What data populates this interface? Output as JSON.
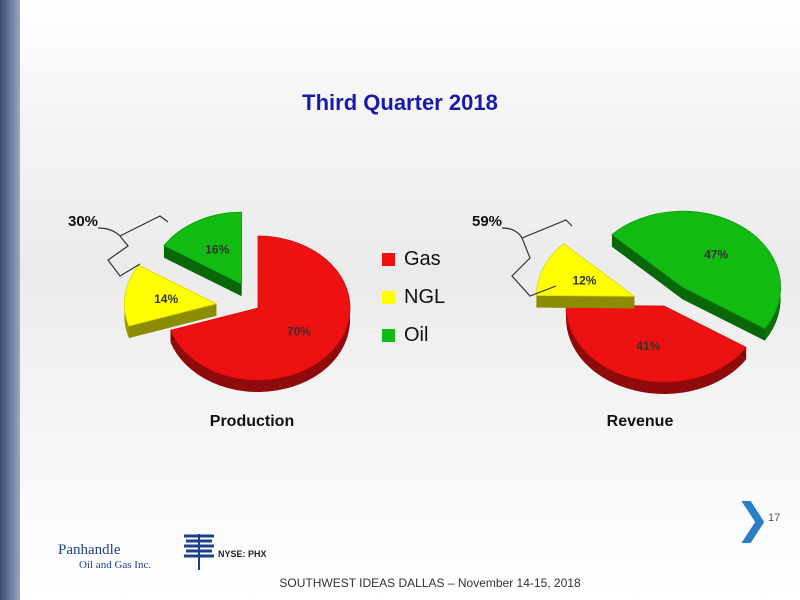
{
  "slide": {
    "title": "Third Quarter 2018",
    "page_number": "17",
    "footer": "SOUTHWEST IDEAS DALLAS – November 14-15, 2018",
    "logo": {
      "name": "Panhandle",
      "subtitle": "Oil and Gas Inc.",
      "ticker": "NYSE: PHX"
    },
    "legend": [
      {
        "label": "Gas",
        "color": "#ee1111"
      },
      {
        "label": "NGL",
        "color": "#ffff00"
      },
      {
        "label": "Oil",
        "color": "#11bb11"
      }
    ]
  },
  "chart_data": [
    {
      "type": "pie",
      "title": "Production",
      "categories": [
        "Gas",
        "NGL",
        "Oil"
      ],
      "values": [
        70,
        14,
        16
      ],
      "labels": [
        "70%",
        "14%",
        "16%"
      ],
      "colors": [
        "#ee1111",
        "#ffff00",
        "#11bb11"
      ],
      "exploded": [
        "NGL",
        "Oil"
      ],
      "bracket_annotation": {
        "text": "30%",
        "covers": [
          "NGL",
          "Oil"
        ]
      }
    },
    {
      "type": "pie",
      "title": "Revenue",
      "categories": [
        "Gas",
        "NGL",
        "Oil"
      ],
      "values": [
        41,
        12,
        47
      ],
      "labels": [
        "41%",
        "12%",
        "47%"
      ],
      "colors": [
        "#ee1111",
        "#ffff00",
        "#11bb11"
      ],
      "exploded": [
        "NGL",
        "Oil"
      ],
      "bracket_annotation": {
        "text": "59%",
        "covers": [
          "NGL",
          "Oil"
        ]
      }
    }
  ]
}
